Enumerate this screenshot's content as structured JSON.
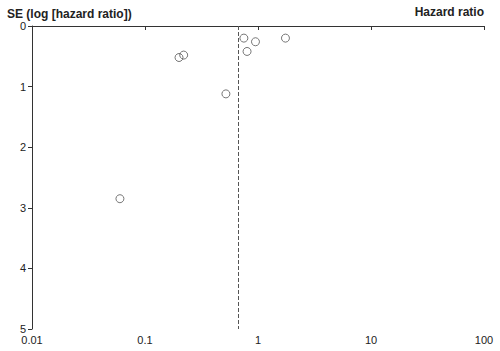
{
  "chart_data": {
    "type": "scatter",
    "x_label": "Hazard ratio",
    "y_label": "SE (log [hazard ratio])",
    "x": [
      0.75,
      0.95,
      1.75,
      0.8,
      0.2,
      0.22,
      0.52,
      0.06
    ],
    "values": [
      0.2,
      0.26,
      0.2,
      0.42,
      0.52,
      0.48,
      1.12,
      2.85
    ],
    "color": "#555555",
    "marker": "open_circle",
    "log": "x",
    "xlim": [
      0.01,
      100
    ],
    "xticks": [
      0.01,
      0.1,
      1,
      10,
      100
    ],
    "ylim": [
      5,
      0
    ],
    "yticks": [
      0,
      1,
      2,
      3,
      4,
      5
    ],
    "reference_x": 0.67,
    "line_style": "dashed",
    "grid": false
  }
}
